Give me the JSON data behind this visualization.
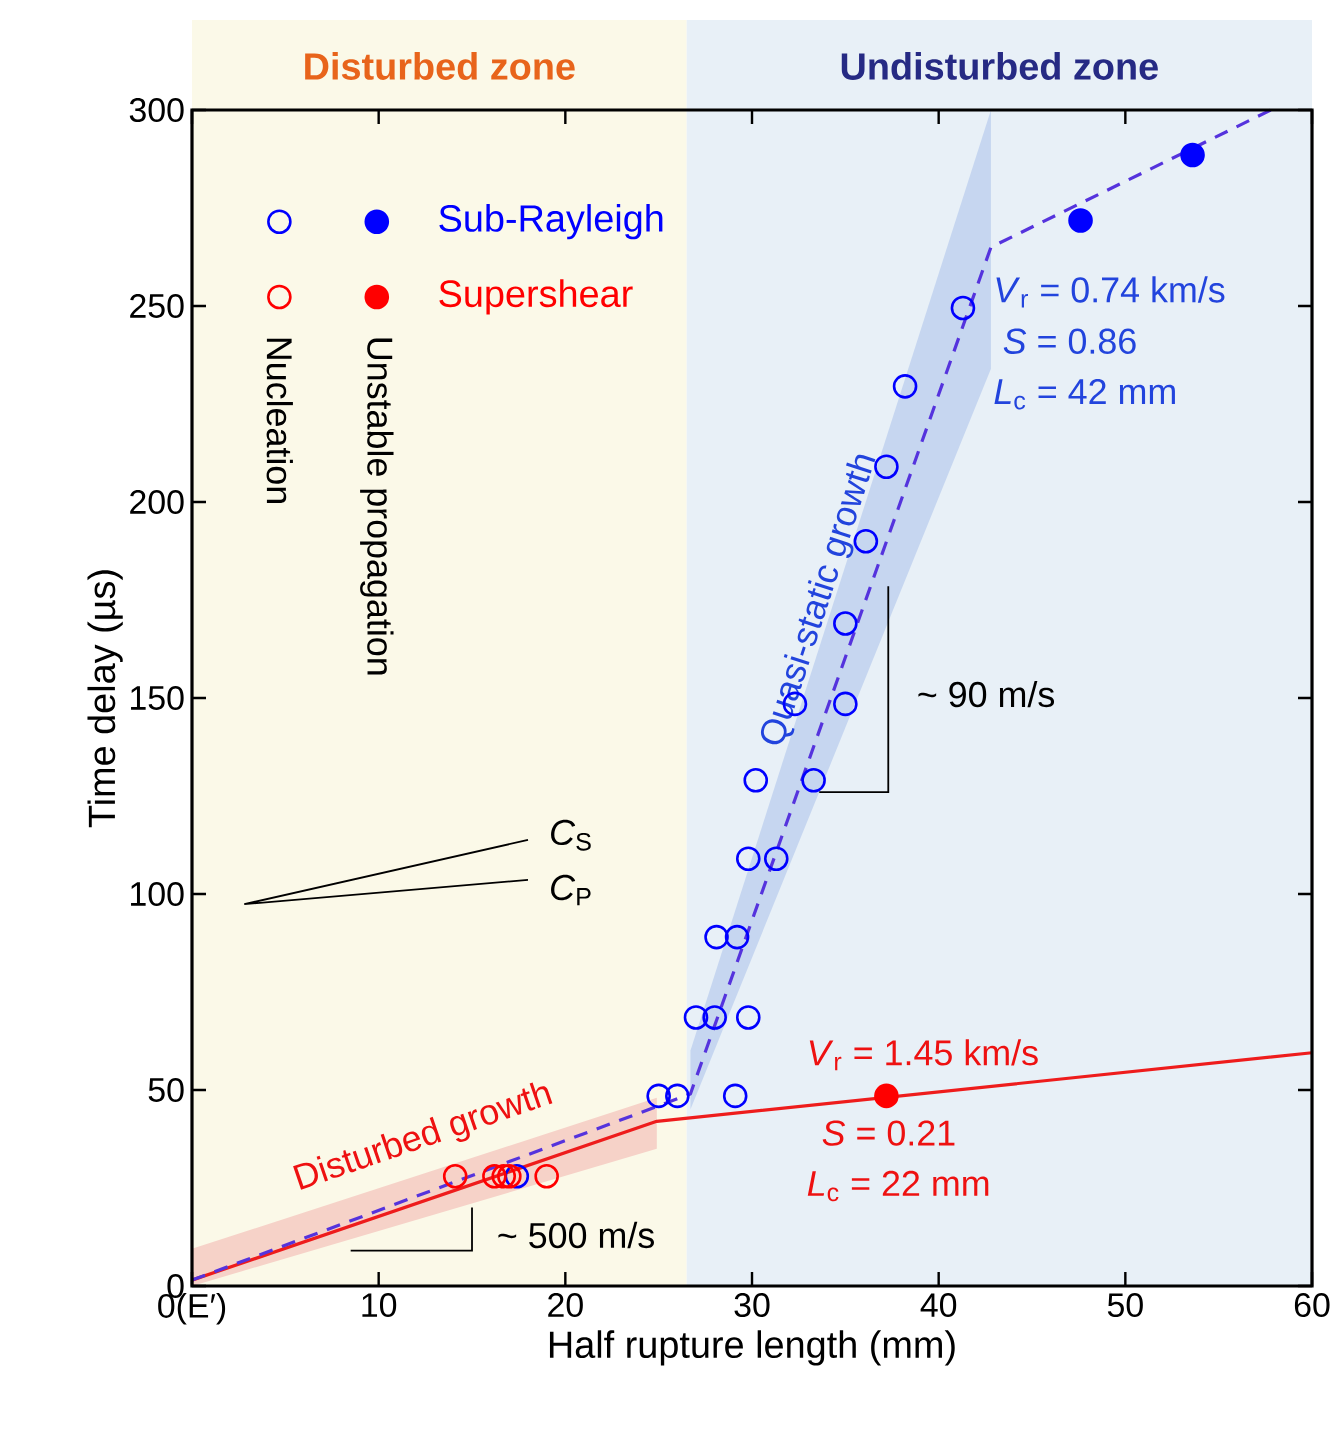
{
  "chart_data": {
    "type": "scatter",
    "xlabel": "Half rupture length (mm)",
    "ylabel": "Time delay (µs)",
    "xlim": [
      0,
      60
    ],
    "ylim": [
      0,
      300
    ],
    "xticks": [
      {
        "value": 0,
        "label": "0(E′)"
      },
      10,
      20,
      30,
      40,
      50,
      60
    ],
    "yticks": [
      0,
      50,
      100,
      150,
      200,
      250,
      300
    ],
    "legend": "top left",
    "bands": [
      {
        "axis": "x",
        "from": 0,
        "to": 26.5,
        "label": "Disturbed zone",
        "color": "#fbf9e8"
      },
      {
        "axis": "x",
        "from": 26.5,
        "to": 60,
        "label": "Undisturbed zone",
        "color": "#e8f0f7"
      }
    ],
    "annotations": [
      "Nucleation",
      "Unstable propagation",
      {
        "text": "Quasi-static growth",
        "x": 36.1,
        "y": 175
      },
      {
        "text": "Disturbed growth",
        "x": 12.4,
        "y": 22
      },
      "~ 90 m/s",
      "~ 500 m/s",
      "*C*$_{S}$",
      "*C*$_{P}$",
      "*V*$_{r}$ = 0.74 km/s",
      "*S* = 0.86",
      "*L*$_{c}$ = 42 mm",
      "*V*$_{r}$ = 1.45 km/s",
      "*S* = 0.21",
      "*L*$_{c}$ = 22 mm"
    ],
    "series": [
      {
        "type": "line",
        "color": "#ee1c1c",
        "x": [
          0,
          24.9,
          60
        ],
        "values": [
          1.5,
          42,
          59.5
        ],
        "lower": [
          0,
          35,
          null
        ],
        "upper": [
          9.5,
          48,
          null
        ],
        "line_style": "solid"
      },
      {
        "type": "line",
        "color": "#5533dd",
        "x": [
          0,
          26.7,
          42.8,
          57.8
        ],
        "values": [
          1.5,
          49,
          265,
          300
        ],
        "lower": [
          null,
          45,
          234,
          null
        ],
        "upper": [
          null,
          60,
          300,
          null
        ],
        "line_style": "dashed"
      },
      {
        "name": "Sub-Rayleigh",
        "color": "#0000ff",
        "marker": "circle",
        "x": [
          25,
          26,
          29.1,
          27,
          28,
          29.8,
          28.1,
          29.2,
          29.8,
          31.3,
          30.2,
          33.3,
          32.3,
          35,
          35,
          36.1,
          37.2,
          38.2,
          41.3,
          17.4
        ],
        "values": [
          48.5,
          48.5,
          48.5,
          68.5,
          68.5,
          68.5,
          89,
          89,
          109,
          109,
          129,
          129,
          148.5,
          148.5,
          169,
          190,
          209,
          229.5,
          249.5,
          28
        ]
      },
      {
        "color": "#0000ff",
        "marker": "circle",
        "x": [
          47.6,
          53.6
        ],
        "values": [
          271.8,
          288.5
        ]
      },
      {
        "name": "Supershear",
        "color": "#ff0000",
        "marker": "circle",
        "x": [
          14.1,
          16.2,
          16.7,
          17,
          19
        ],
        "values": [
          28,
          28,
          28,
          28,
          28
        ]
      },
      {
        "color": "#ff0000",
        "marker": "circle",
        "x": [
          37.2
        ],
        "values": [
          48.5
        ]
      }
    ]
  }
}
